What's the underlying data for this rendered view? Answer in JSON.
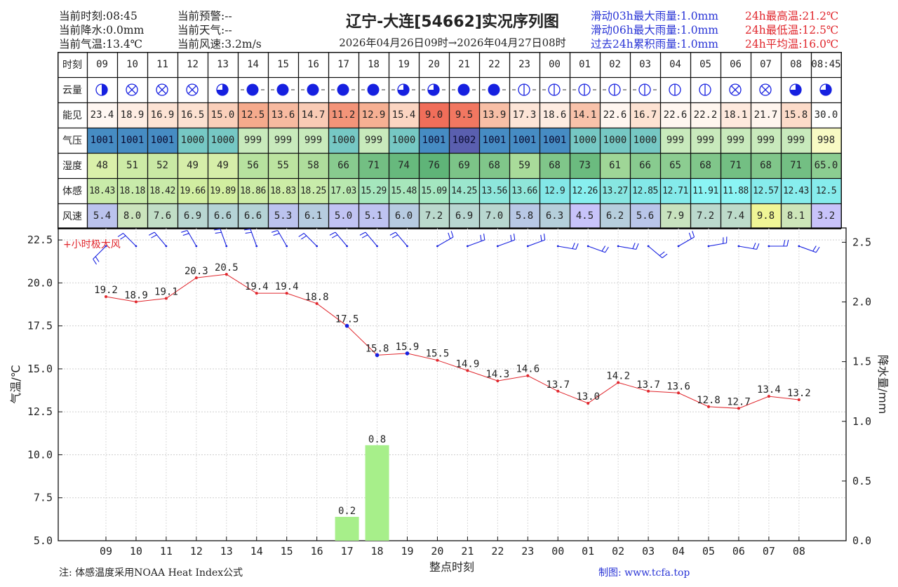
{
  "header": {
    "left1": [
      "当前时刻:08:45",
      "当前降水:0.0mm",
      "当前气温:13.4℃"
    ],
    "left2": [
      "当前预警:--",
      "当前天气:--",
      "当前风速:3.2m/s"
    ],
    "title": "辽宁-大连[54662]实况序列图",
    "subtitle": "2026年04月26日09时→2026年04月27日08时",
    "rain_stats": [
      "滑动03h最大雨量:1.0mm",
      "滑动06h最大雨量:1.0mm",
      "过去24h累积雨量:1.0mm"
    ],
    "temp_stats": [
      "24h最高温:21.2℃",
      "24h最低温:12.5℃",
      "24h平均温:16.0℃"
    ],
    "colors": {
      "blue": "#2a35d6",
      "red": "#e0262c"
    }
  },
  "table": {
    "row_labels": [
      "时刻",
      "云量",
      "能见",
      "气压",
      "湿度",
      "体感",
      "风速"
    ],
    "hours": [
      "09",
      "10",
      "11",
      "12",
      "13",
      "14",
      "15",
      "16",
      "17",
      "18",
      "19",
      "20",
      "21",
      "22",
      "23",
      "00",
      "01",
      "02",
      "03",
      "04",
      "05",
      "06",
      "07",
      "08",
      "08:45"
    ],
    "cloud": [
      "quarter-half",
      "cross",
      "cross",
      "cross",
      "three-quarter",
      "full-dash",
      "full-dash",
      "full-dash",
      "full-dash",
      "full-dash",
      "three-quarter-dash",
      "three-quarter-dash",
      "full-dash",
      "full-dash",
      "vline-dash",
      "vline-dash",
      "vline-dash",
      "vline-dash",
      "vline-dash",
      "vline",
      "vline",
      "cross",
      "cross",
      "three-quarter",
      "three-quarter"
    ],
    "visibility": [
      "23.4",
      "18.9",
      "16.9",
      "16.5",
      "15.0",
      "12.5",
      "13.6",
      "14.7",
      "11.2",
      "12.9",
      "15.4",
      "9.0",
      "9.5",
      "13.9",
      "17.3",
      "18.6",
      "14.1",
      "22.6",
      "16.7",
      "22.6",
      "22.2",
      "18.1",
      "21.7",
      "15.8",
      "30.0"
    ],
    "pressure": [
      "1001",
      "1001",
      "1001",
      "1000",
      "1000",
      "999",
      "999",
      "999",
      "1000",
      "999",
      "1000",
      "1001",
      "1002",
      "1001",
      "1001",
      "1001",
      "1000",
      "1000",
      "1000",
      "999",
      "999",
      "999",
      "999",
      "999",
      "998"
    ],
    "humidity": [
      "48",
      "51",
      "52",
      "49",
      "49",
      "56",
      "55",
      "58",
      "66",
      "71",
      "74",
      "76",
      "69",
      "68",
      "59",
      "68",
      "73",
      "61",
      "66",
      "65",
      "68",
      "71",
      "68",
      "71",
      "65.0"
    ],
    "apparent": [
      "18.43",
      "18.18",
      "18.42",
      "19.66",
      "19.89",
      "18.86",
      "18.83",
      "18.25",
      "17.03",
      "15.29",
      "15.48",
      "15.09",
      "14.25",
      "13.56",
      "13.66",
      "12.9",
      "12.26",
      "13.27",
      "12.85",
      "12.71",
      "11.91",
      "11.88",
      "12.57",
      "12.43",
      "12.5"
    ],
    "wind": [
      "5.4",
      "8.0",
      "7.6",
      "6.9",
      "6.6",
      "6.6",
      "5.3",
      "6.1",
      "5.0",
      "5.1",
      "6.0",
      "7.2",
      "6.9",
      "7.0",
      "5.8",
      "6.3",
      "4.5",
      "6.2",
      "5.6",
      "7.9",
      "7.2",
      "7.4",
      "9.8",
      "8.1",
      "3.2"
    ]
  },
  "chart_data": {
    "type": "line",
    "x": [
      "09",
      "10",
      "11",
      "12",
      "13",
      "14",
      "15",
      "16",
      "17",
      "18",
      "19",
      "20",
      "21",
      "22",
      "23",
      "00",
      "01",
      "02",
      "03",
      "04",
      "05",
      "06",
      "07",
      "08"
    ],
    "series": [
      {
        "values": [
          19.2,
          18.9,
          19.1,
          20.3,
          20.5,
          19.4,
          19.4,
          18.8,
          17.5,
          15.8,
          15.9,
          15.5,
          14.9,
          14.3,
          14.6,
          13.7,
          13.0,
          14.2,
          13.7,
          13.6,
          12.8,
          12.7,
          13.4,
          13.2
        ],
        "color": "#e0262c"
      }
    ],
    "precip": {
      "type": "bar",
      "x": [
        "17",
        "18"
      ],
      "values": [
        0.2,
        0.8
      ],
      "color": "#a7ef8a"
    },
    "wind_dir_deg": [
      225,
      315,
      320,
      330,
      340,
      340,
      330,
      315,
      320,
      320,
      320,
      60,
      70,
      70,
      70,
      100,
      110,
      100,
      130,
      60,
      80,
      100,
      90,
      110
    ],
    "xlabel": "整点时刻",
    "ylabel_left": "气温/℃",
    "ylabel_right": "降水量/mm",
    "ylim_left": [
      5.0,
      23.2
    ],
    "ylim_right": [
      0.0,
      2.62
    ],
    "yticks_left": [
      "5.0",
      "7.5",
      "10.0",
      "12.5",
      "15.0",
      "17.5",
      "20.0",
      "22.5"
    ],
    "yticks_right": [
      "0.0",
      "0.5",
      "1.0",
      "1.5",
      "2.0",
      "2.5"
    ],
    "legend": "+小时极大风",
    "grid": true
  },
  "footer": {
    "note": "注: 体感温度采用NOAA Heat Index公式",
    "credit": "制图: www.tcfa.top"
  }
}
